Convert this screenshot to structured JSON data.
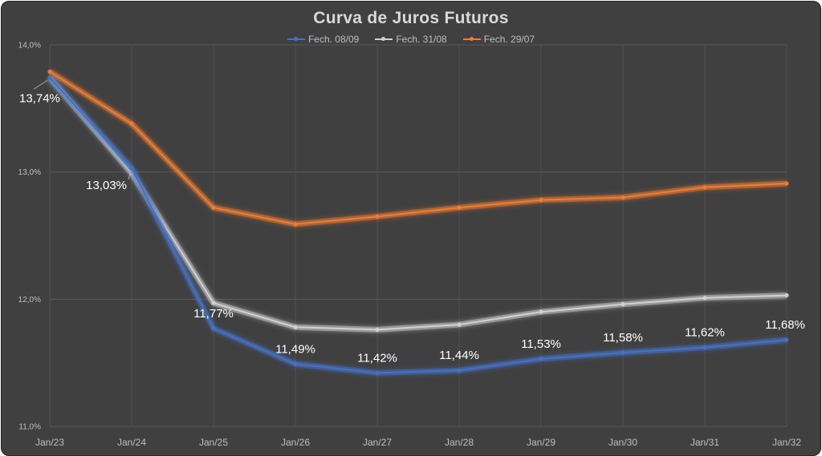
{
  "chart_data": {
    "type": "line",
    "title": "Curva de Juros Futuros",
    "xlabel": "",
    "ylabel": "",
    "x": [
      "Jan/23",
      "Jan/24",
      "Jan/25",
      "Jan/26",
      "Jan/27",
      "Jan/28",
      "Jan/29",
      "Jan/30",
      "Jan/31",
      "Jan/32"
    ],
    "y_ticks": [
      "11,0%",
      "12,0%",
      "13,0%",
      "14,0%"
    ],
    "ylim": [
      11.0,
      14.0
    ],
    "grid": true,
    "legend": "top",
    "series": [
      {
        "name": "Fech. 08/09",
        "color": "#4472c4",
        "values": [
          13.74,
          13.03,
          11.77,
          11.49,
          11.42,
          11.44,
          11.53,
          11.58,
          11.62,
          11.68
        ],
        "labels": [
          "13,74%",
          "13,03%",
          "11,77%",
          "11,49%",
          "11,42%",
          "11,44%",
          "11,53%",
          "11,58%",
          "11,62%",
          "11,68%"
        ]
      },
      {
        "name": "Fech. 31/08",
        "color": "#d0d0d0",
        "values": [
          13.74,
          12.99,
          11.97,
          11.78,
          11.76,
          11.8,
          11.9,
          11.96,
          12.01,
          12.03
        ]
      },
      {
        "name": "Fech. 29/07",
        "color": "#ed7d31",
        "values": [
          13.79,
          13.38,
          12.72,
          12.59,
          12.65,
          12.72,
          12.78,
          12.8,
          12.88,
          12.91
        ]
      }
    ]
  }
}
